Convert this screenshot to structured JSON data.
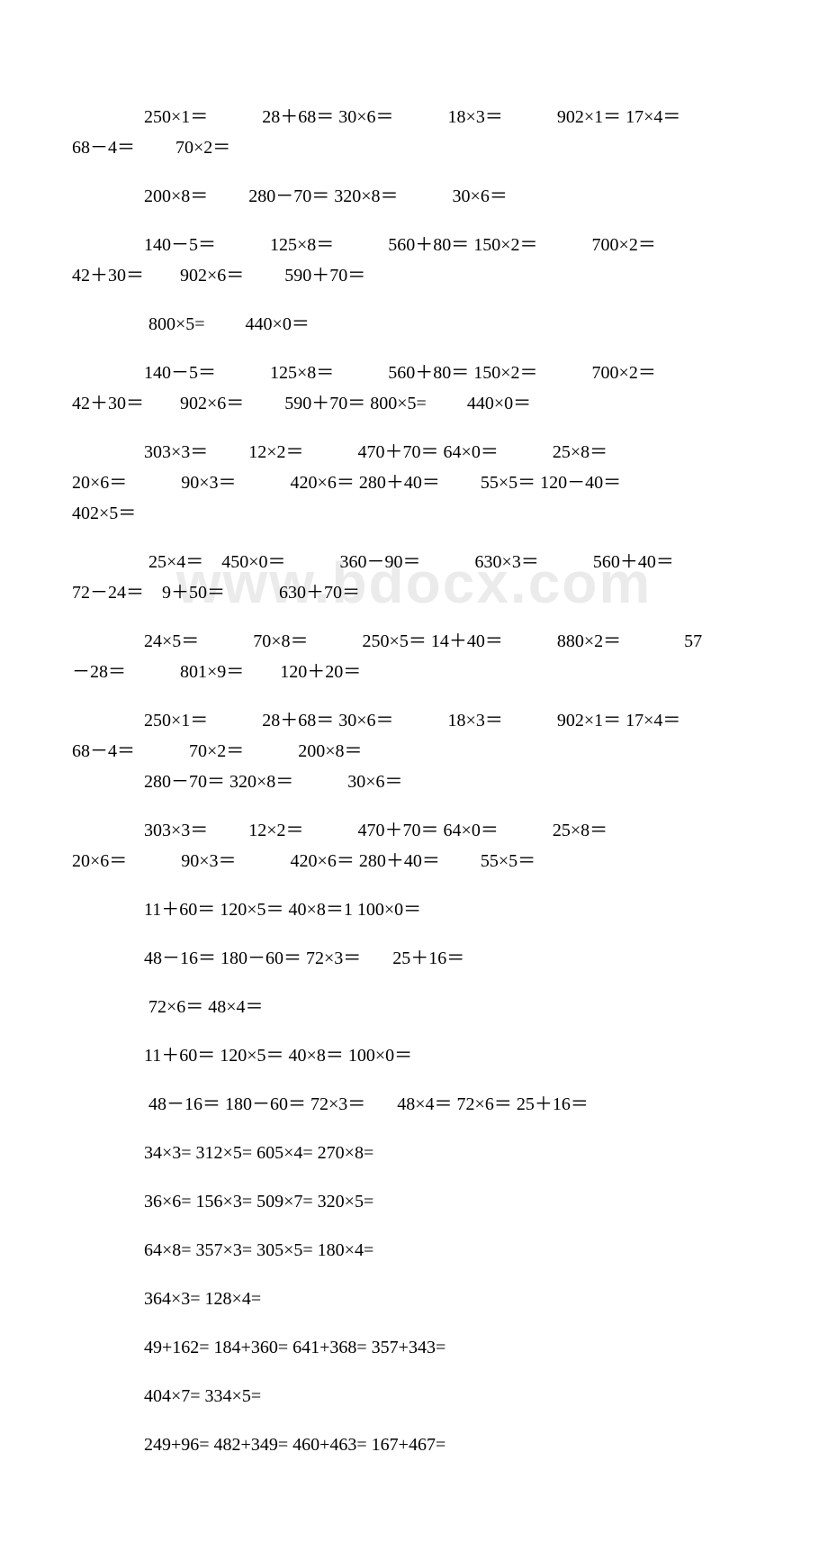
{
  "watermark": "www.bdocx.com",
  "lines": [
    {
      "text": "250×1＝            28＋68＝ 30×6＝            18×3＝            902×1＝ 17×4＝",
      "indent": true
    },
    {
      "text": "68－4＝         70×2＝",
      "indent": false,
      "blockEnd": true
    },
    {
      "text": "200×8＝         280－70＝ 320×8＝            30×6＝",
      "indent": true,
      "blockEnd": true
    },
    {
      "text": "140－5＝            125×8＝            560＋80＝ 150×2＝            700×2＝",
      "indent": true
    },
    {
      "text": "42＋30＝        902×6＝         590＋70＝",
      "indent": false,
      "blockEnd": true
    },
    {
      "text": " 800×5=         440×0＝",
      "indent": true,
      "blockEnd": true
    },
    {
      "text": "140－5＝            125×8＝            560＋80＝ 150×2＝            700×2＝",
      "indent": true
    },
    {
      "text": "42＋30＝        902×6＝         590＋70＝ 800×5=         440×0＝",
      "indent": false,
      "blockEnd": true
    },
    {
      "text": "303×3＝         12×2＝            470＋70＝ 64×0＝            25×8＝",
      "indent": true
    },
    {
      "text": "20×6＝            90×3＝            420×6＝ 280＋40＝         55×5＝ 120－40＝",
      "indent": false
    },
    {
      "text": "402×5＝",
      "indent": false,
      "blockEnd": true
    },
    {
      "text": " 25×4＝    450×0＝            360－90＝            630×3＝            560＋40＝",
      "indent": true
    },
    {
      "text": "72－24＝    9＋50＝            630＋70＝",
      "indent": false,
      "blockEnd": true
    },
    {
      "text": "24×5＝            70×8＝            250×5＝ 14＋40＝            880×2＝              57",
      "indent": true
    },
    {
      "text": "－28＝            801×9＝        120＋20＝",
      "indent": false,
      "blockEnd": true
    },
    {
      "text": "250×1＝            28＋68＝ 30×6＝            18×3＝            902×1＝ 17×4＝",
      "indent": true
    },
    {
      "text": "68－4＝            70×2＝            200×8＝",
      "indent": false
    },
    {
      "text": "280－70＝ 320×8＝            30×6＝",
      "indent": true,
      "blockEnd": true
    },
    {
      "text": "303×3＝         12×2＝            470＋70＝ 64×0＝            25×8＝",
      "indent": true
    },
    {
      "text": "20×6＝            90×3＝            420×6＝ 280＋40＝         55×5＝",
      "indent": false,
      "blockEnd": true
    },
    {
      "text": "11＋60＝ 120×5＝ 40×8＝1 100×0＝",
      "indent": true,
      "blockEnd": true
    },
    {
      "text": "48－16＝ 180－60＝ 72×3＝       25＋16＝",
      "indent": true,
      "blockEnd": true
    },
    {
      "text": " 72×6＝ 48×4＝",
      "indent": true,
      "blockEnd": true
    },
    {
      "text": "11＋60＝ 120×5＝ 40×8＝ 100×0＝",
      "indent": true,
      "blockEnd": true
    },
    {
      "text": " 48－16＝ 180－60＝ 72×3＝       48×4＝ 72×6＝ 25＋16＝",
      "indent": true,
      "blockEnd": true
    },
    {
      "text": "34×3= 312×5= 605×4= 270×8=",
      "indent": true,
      "blockEnd": true
    },
    {
      "text": "36×6= 156×3= 509×7= 320×5=",
      "indent": true,
      "blockEnd": true
    },
    {
      "text": "64×8= 357×3= 305×5= 180×4=",
      "indent": true,
      "blockEnd": true
    },
    {
      "text": "364×3= 128×4=",
      "indent": true,
      "blockEnd": true
    },
    {
      "text": "49+162= 184+360= 641+368= 357+343=",
      "indent": true,
      "blockEnd": true
    },
    {
      "text": "404×7= 334×5=",
      "indent": true,
      "blockEnd": true
    },
    {
      "text": "249+96= 482+349= 460+463= 167+467=",
      "indent": true,
      "blockEnd": true
    }
  ]
}
